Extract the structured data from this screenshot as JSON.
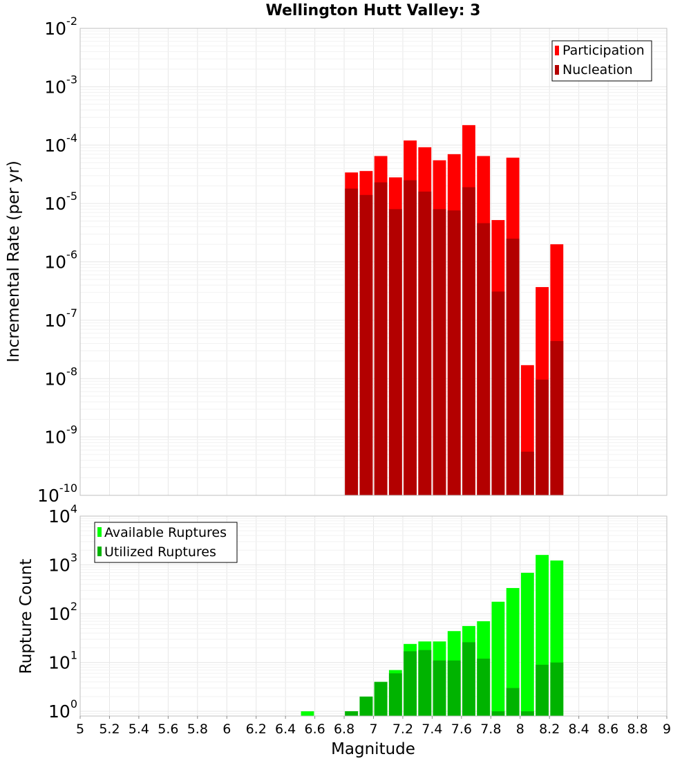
{
  "colors": {
    "participation": "#ff0000",
    "nucleation": "#b30000",
    "available": "#00ff00",
    "utilized": "#00b300",
    "grid_major": "#e6e6e6",
    "grid_minor": "#f2f2f2",
    "frame": "#bfbfbf"
  },
  "chart_data": [
    {
      "type": "bar",
      "title": "Wellington Hutt Valley: 3",
      "ylabel": "Incremental Rate (per yr)",
      "xlabel": "",
      "yscale": "log",
      "xlim": [
        5,
        9
      ],
      "ylim": [
        1e-10,
        0.01
      ],
      "grid": true,
      "legend_position": "top-right",
      "bin_width": 0.1,
      "x": [
        6.85,
        6.95,
        7.05,
        7.15,
        7.25,
        7.35,
        7.45,
        7.55,
        7.65,
        7.75,
        7.85,
        7.95,
        8.05,
        8.15,
        8.25
      ],
      "ytick_labels": [
        "10-10",
        "10-9",
        "10-8",
        "10-7",
        "10-6",
        "10-5",
        "10-4",
        "10-3",
        "10-2"
      ],
      "series": [
        {
          "name": "Participation",
          "color": "#ff0000",
          "values": [
            3.4e-05,
            3.6e-05,
            6.5e-05,
            2.8e-05,
            0.00012,
            9.2e-05,
            5.5e-05,
            7e-05,
            0.00022,
            6.5e-05,
            5.2e-06,
            6.1e-05,
            1.7e-08,
            3.7e-07,
            2e-06
          ]
        },
        {
          "name": "Nucleation",
          "color": "#b30000",
          "values": [
            1.8e-05,
            1.4e-05,
            2.3e-05,
            8e-06,
            2.5e-05,
            1.6e-05,
            8e-06,
            7.6e-06,
            1.9e-05,
            4.6e-06,
            3.1e-07,
            2.5e-06,
            5.6e-10,
            9.6e-09,
            4.4e-08
          ]
        }
      ]
    },
    {
      "type": "bar",
      "title": "",
      "ylabel": "Rupture Count",
      "xlabel": "Magnitude",
      "yscale": "log",
      "xlim": [
        5,
        9
      ],
      "ylim": [
        0.8,
        10000
      ],
      "grid": true,
      "legend_position": "top-left",
      "bin_width": 0.1,
      "x": [
        6.55,
        6.85,
        6.95,
        7.05,
        7.15,
        7.25,
        7.35,
        7.45,
        7.55,
        7.65,
        7.75,
        7.85,
        7.95,
        8.05,
        8.15,
        8.25
      ],
      "xtick_labels": [
        "5",
        "5.2",
        "5.4",
        "5.6",
        "5.8",
        "6",
        "6.2",
        "6.4",
        "6.6",
        "6.8",
        "7",
        "7.2",
        "7.4",
        "7.6",
        "7.8",
        "8",
        "8.2",
        "8.4",
        "8.6",
        "8.8",
        "9"
      ],
      "ytick_labels": [
        "100",
        "101",
        "102",
        "103",
        "104"
      ],
      "series": [
        {
          "name": "Available Ruptures",
          "color": "#00ff00",
          "values": [
            1,
            1,
            2,
            4,
            7,
            24,
            27,
            27,
            44,
            56,
            70,
            176,
            336,
            689,
            1600,
            1230
          ]
        },
        {
          "name": "Utilized Ruptures",
          "color": "#00b300",
          "values": [
            0,
            1,
            2,
            4,
            6,
            17,
            18,
            11,
            11,
            26,
            12,
            1,
            3,
            1,
            9,
            10
          ]
        }
      ]
    }
  ]
}
